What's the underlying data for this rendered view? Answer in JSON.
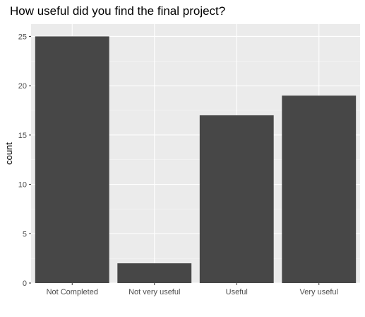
{
  "chart_data": {
    "type": "bar",
    "title": "How useful did you find the final project?",
    "xlabel": "",
    "ylabel": "count",
    "categories": [
      "Not Completed",
      "Not very useful",
      "Useful",
      "Very useful"
    ],
    "values": [
      25,
      2,
      17,
      19
    ],
    "ylim": [
      0,
      26.25
    ],
    "yticks": [
      0,
      5,
      10,
      15,
      20,
      25
    ],
    "grid": true,
    "legend": "none",
    "colors": {
      "bar": "#474747",
      "panel": "#ebebeb",
      "grid_major": "#ffffff",
      "axis_text": "#4d4d4d",
      "title": "#000000"
    }
  }
}
